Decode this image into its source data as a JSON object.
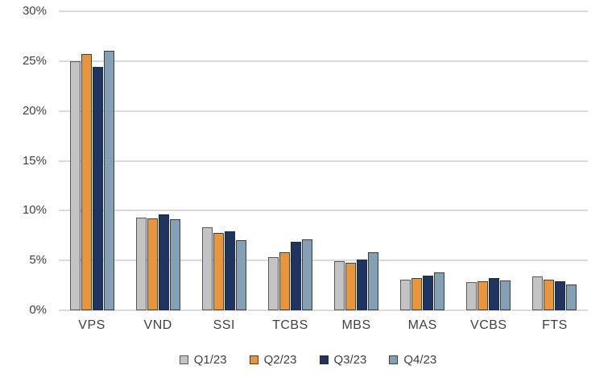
{
  "chart_data": {
    "type": "bar",
    "title": "",
    "xlabel": "",
    "ylabel": "",
    "categories": [
      "VPS",
      "VND",
      "SSI",
      "TCBS",
      "MBS",
      "MAS",
      "VCBS",
      "FTS"
    ],
    "series": [
      {
        "name": "Q1/23",
        "fill": "#C3C3C3",
        "border": "#595959",
        "values": [
          25.0,
          9.3,
          8.3,
          5.3,
          4.9,
          3.1,
          2.8,
          3.4
        ]
      },
      {
        "name": "Q2/23",
        "fill": "#E8953D",
        "border": "#404040",
        "values": [
          25.7,
          9.2,
          7.8,
          5.8,
          4.8,
          3.2,
          2.9,
          3.1
        ]
      },
      {
        "name": "Q3/23",
        "fill": "#1F3560",
        "border": "#1C2B4E",
        "values": [
          24.4,
          9.6,
          7.9,
          6.9,
          5.1,
          3.5,
          3.2,
          2.9
        ]
      },
      {
        "name": "Q4/23",
        "fill": "#84A0B5",
        "border": "#3D3D3D",
        "values": [
          26.0,
          9.1,
          7.0,
          7.1,
          5.8,
          3.8,
          3.0,
          2.6
        ]
      }
    ],
    "ylim": [
      0,
      30
    ],
    "ytick_step": 5,
    "ytick_labels": [
      "0%",
      "5%",
      "10%",
      "15%",
      "20%",
      "25%",
      "30%"
    ],
    "grid": true,
    "legend_position": "bottom"
  },
  "colors": {
    "gridline": "#DADADA",
    "axis_text": "#404040",
    "background": "#FFFFFF"
  }
}
